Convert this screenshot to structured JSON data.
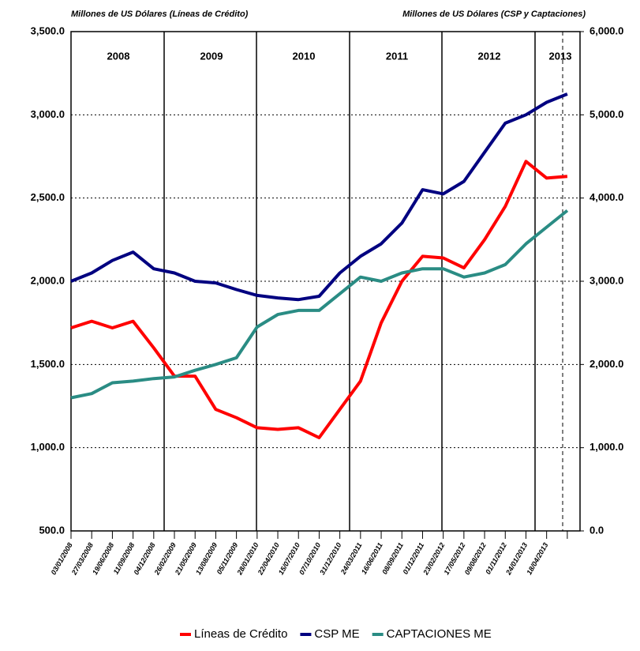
{
  "chart_data": {
    "type": "line",
    "left_axis_title": "Millones de US Dólares (Líneas de Crédito)",
    "right_axis_title": "Millones de US Dólares (CSP y Captaciones)",
    "years": [
      "2008",
      "2009",
      "2010",
      "2011",
      "2012",
      "2013"
    ],
    "categories": [
      "03/01/2008",
      "27/03/2008",
      "19/06/2008",
      "11/09/2008",
      "04/12/2008",
      "26/02/2009",
      "21/05/2009",
      "13/08/2009",
      "05/11/2009",
      "28/01/2010",
      "22/04/2010",
      "15/07/2010",
      "07/10/2010",
      "31/12/2010",
      "24/03/2011",
      "16/06/2011",
      "08/09/2011",
      "01/12/2011",
      "23/02/2012",
      "17/05/2012",
      "09/08/2012",
      "01/11/2012",
      "24/01/2013",
      "18/04/2013",
      null
    ],
    "series": [
      {
        "name": "Líneas de Crédito",
        "color": "#ff0000",
        "values": [
          1720,
          1760,
          1720,
          1760,
          1600,
          1430,
          1430,
          1230,
          1180,
          1120,
          1110,
          1120,
          1060,
          1230,
          1400,
          1750,
          2000,
          2150,
          2140,
          2080,
          2250,
          2450,
          2720,
          2620,
          2630
        ]
      },
      {
        "name": "CSP ME",
        "color": "#000080",
        "axis": "y2",
        "values": [
          3000,
          3100,
          3250,
          3350,
          3150,
          3100,
          3000,
          2980,
          2900,
          2830,
          2800,
          2780,
          2820,
          3100,
          3300,
          3450,
          3700,
          4100,
          4050,
          4200,
          4550,
          4900,
          5000,
          5150,
          5250
        ]
      },
      {
        "name": "CAPTACIONES ME",
        "color": "#2a8c84",
        "axis": "y2",
        "values": [
          1600,
          1650,
          1780,
          1800,
          1830,
          1850,
          1930,
          2000,
          2080,
          2450,
          2600,
          2650,
          2650,
          2850,
          3050,
          3000,
          3100,
          3150,
          3150,
          3050,
          3100,
          3200,
          3450,
          3650,
          3850
        ]
      }
    ],
    "ylim": [
      500,
      3500
    ],
    "yticks": [
      {
        "value": 500,
        "label": "500.0"
      },
      {
        "value": 1000,
        "label": "1,000.0"
      },
      {
        "value": 1500,
        "label": "1,500.0"
      },
      {
        "value": 2000,
        "label": "2,000.0"
      },
      {
        "value": 2500,
        "label": "2,500.0"
      },
      {
        "value": 3000,
        "label": "3,000.0"
      },
      {
        "value": 3500,
        "label": "3,500.0"
      }
    ],
    "y2lim": [
      0,
      6000
    ],
    "y2ticks": [
      {
        "value": 0,
        "label": "0.0"
      },
      {
        "value": 1000,
        "label": "1,000.0"
      },
      {
        "value": 2000,
        "label": "2,000.0"
      },
      {
        "value": 3000,
        "label": "3,000.0"
      },
      {
        "value": 4000,
        "label": "4,000.0"
      },
      {
        "value": 5000,
        "label": "5,000.0"
      },
      {
        "value": 6000,
        "label": "6,000.0"
      }
    ],
    "grid": true,
    "legend": "bottom"
  }
}
